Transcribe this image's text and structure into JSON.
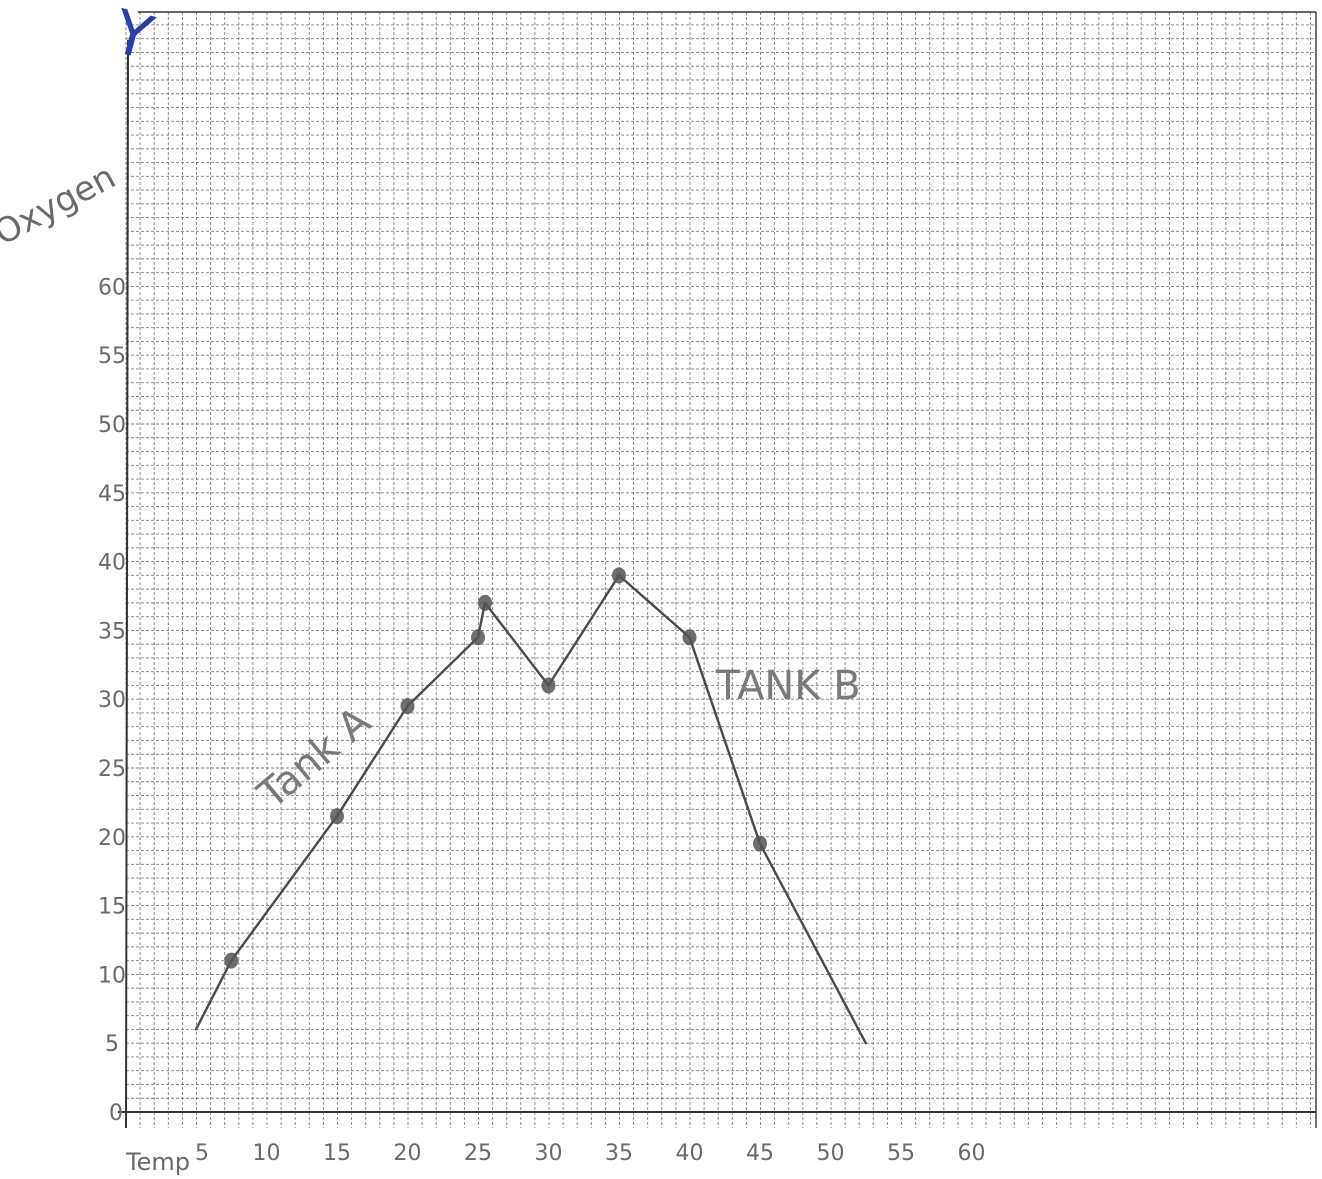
{
  "chart_data": {
    "type": "line",
    "title": "",
    "ylabel": "Oxygen",
    "xlabel": "Temp",
    "y_axis_marker": "Y",
    "xlim": [
      0,
      60
    ],
    "ylim": [
      0,
      60
    ],
    "y_ticks": [
      "0",
      "5",
      "10",
      "15",
      "20",
      "25",
      "30",
      "35",
      "40",
      "45",
      "50",
      "55",
      "60"
    ],
    "x_ticks": [
      "5",
      "10",
      "15",
      "20",
      "25",
      "30",
      "35",
      "40",
      "45",
      "50",
      "55",
      "60"
    ],
    "series": [
      {
        "x": [
          5,
          7.5,
          15,
          20,
          25,
          25.5,
          30,
          35,
          40,
          45,
          52.5
        ],
        "y": [
          6,
          11,
          21.5,
          29.5,
          34.5,
          37,
          31,
          39,
          34.5,
          19.5,
          5
        ],
        "markers": [
          false,
          true,
          true,
          true,
          true,
          true,
          true,
          true,
          true,
          true,
          false
        ]
      }
    ],
    "annotations": [
      {
        "text": "Tank A",
        "x": 14,
        "y": 25
      },
      {
        "text": "TANK B",
        "x": 47,
        "y": 30
      }
    ],
    "grid": true,
    "colors": {
      "grid": "#555555",
      "line": "#4a4a4a",
      "label": "#6a6a6a",
      "y_marker": "#2a3ea8"
    }
  }
}
